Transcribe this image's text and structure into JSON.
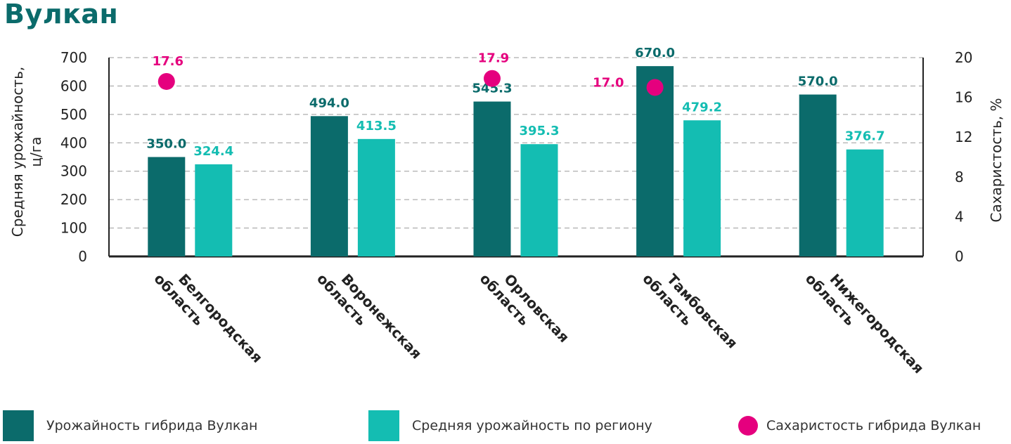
{
  "title": "Вулкан",
  "colors": {
    "hybrid": "#0b6b6b",
    "region": "#14bdb2",
    "sugar": "#e5007e",
    "axis": "#222222",
    "grid": "#9a9a9a",
    "text": "#333333"
  },
  "chart_data": {
    "type": "bar",
    "categories": [
      [
        "Белгородская",
        "область"
      ],
      [
        "Воронежская",
        "область"
      ],
      [
        "Орловская",
        "область"
      ],
      [
        "Тамбовская",
        "область"
      ],
      [
        "Нижегородская",
        "область"
      ]
    ],
    "series": [
      {
        "name": "Урожайность гибрида Вулкан",
        "values": [
          350.0,
          494.0,
          545.3,
          670.0,
          570.0
        ],
        "labels": [
          "350.0",
          "494.0",
          "545.3",
          "670.0",
          "570.0"
        ],
        "axis": "left"
      },
      {
        "name": "Средняя урожайность по региону",
        "values": [
          324.4,
          413.5,
          395.3,
          479.2,
          376.7
        ],
        "labels": [
          "324.4",
          "413.5",
          "395.3",
          "479.2",
          "376.7"
        ],
        "axis": "left"
      },
      {
        "name": "Сахаристость гибрида Вулкан",
        "type": "scatter",
        "values": [
          17.6,
          null,
          17.9,
          17.0,
          null
        ],
        "labels": [
          "17.6",
          "",
          "17.9",
          "17.0",
          ""
        ],
        "axis": "right"
      }
    ],
    "ylabel": [
      "Средняя урожайность,",
      "ц/га"
    ],
    "y2label": "Сахаристость, %",
    "ylim": [
      0,
      700
    ],
    "y2lim": [
      0,
      20
    ],
    "yticks": [
      "0",
      "100",
      "200",
      "300",
      "400",
      "500",
      "600",
      "700"
    ],
    "y2ticks": [
      "0",
      "4",
      "8",
      "12",
      "16",
      "20"
    ],
    "grid": true,
    "legend_position": "bottom"
  },
  "legend": [
    {
      "label": "Урожайность гибрида Вулкан"
    },
    {
      "label": "Средняя урожайность по региону"
    },
    {
      "label": "Сахаристость гибрида Вулкан"
    }
  ]
}
